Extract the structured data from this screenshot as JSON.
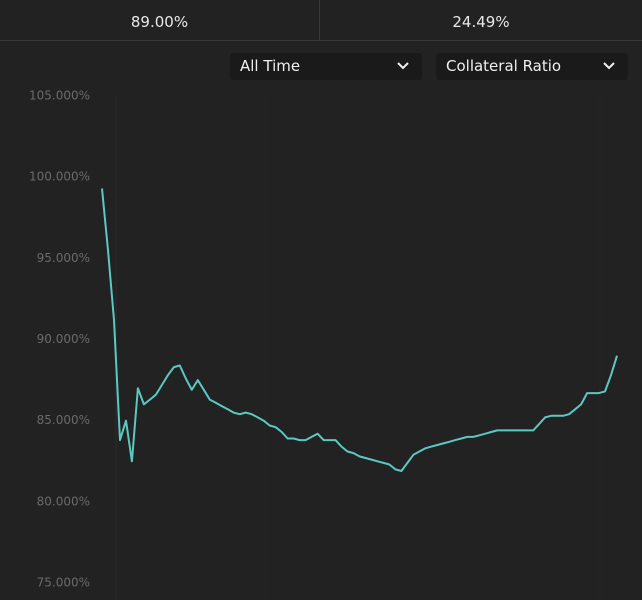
{
  "stats": [
    "89.00%",
    "24.49%"
  ],
  "filters": {
    "range": "All Time",
    "metric": "Collateral Ratio"
  },
  "chart_data": {
    "type": "line",
    "color": "#5cc8c2",
    "grid": false,
    "ylim": [
      75,
      105
    ],
    "yticks": [
      {
        "value": 75,
        "label": "75.000%"
      },
      {
        "value": 80,
        "label": "80.000%"
      },
      {
        "value": 85,
        "label": "85.000%"
      },
      {
        "value": 90,
        "label": "90.000%"
      },
      {
        "value": 95,
        "label": "95.000%"
      },
      {
        "value": 100,
        "label": "100.000%"
      },
      {
        "value": 105,
        "label": "105.000%"
      }
    ],
    "values": [
      99.3,
      95.5,
      91.2,
      83.8,
      85.0,
      82.5,
      87.0,
      86.0,
      86.3,
      86.6,
      87.2,
      87.8,
      88.3,
      88.4,
      87.6,
      86.9,
      87.5,
      86.9,
      86.3,
      86.1,
      85.9,
      85.7,
      85.5,
      85.4,
      85.5,
      85.4,
      85.2,
      85.0,
      84.7,
      84.6,
      84.3,
      83.9,
      83.9,
      83.8,
      83.8,
      84.0,
      84.2,
      83.8,
      83.8,
      83.8,
      83.4,
      83.1,
      83.0,
      82.8,
      82.7,
      82.6,
      82.5,
      82.4,
      82.3,
      82.0,
      81.9,
      82.4,
      82.9,
      83.1,
      83.3,
      83.4,
      83.5,
      83.6,
      83.7,
      83.8,
      83.9,
      84.0,
      84.0,
      84.1,
      84.2,
      84.3,
      84.4,
      84.4,
      84.4,
      84.4,
      84.4,
      84.4,
      84.4,
      84.8,
      85.2,
      85.3,
      85.3,
      85.3,
      85.4,
      85.7,
      86.0,
      86.7,
      86.7,
      86.7,
      86.8,
      87.8,
      89.0
    ]
  }
}
